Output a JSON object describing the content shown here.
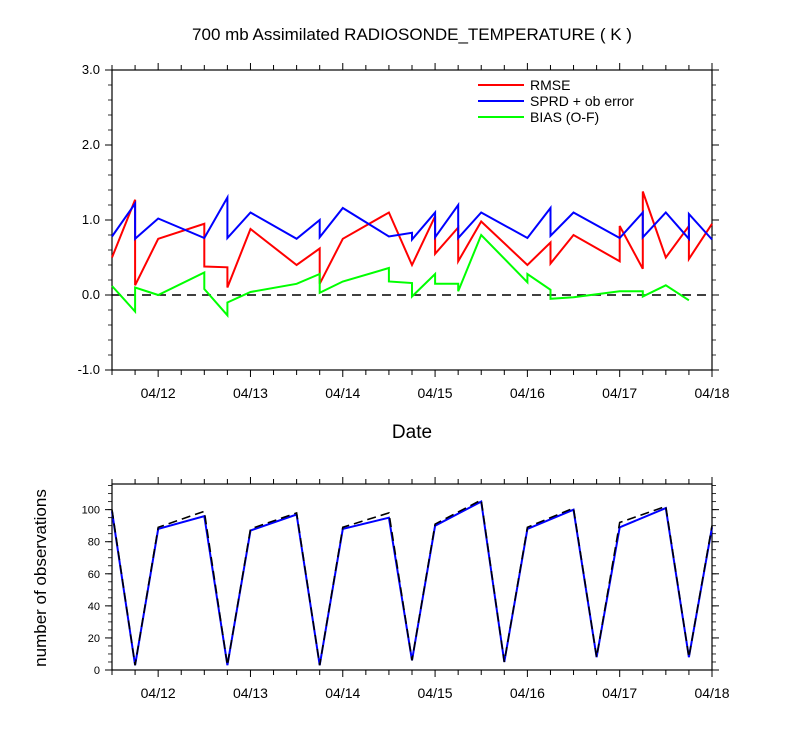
{
  "chart_data": [
    {
      "type": "line",
      "title": "700 mb Assimilated RADIOSONDE_TEMPERATURE ( K )",
      "xlabel": "Date",
      "ylabel": "",
      "xlim": [
        0,
        6.5
      ],
      "ylim": [
        -1.0,
        3.0
      ],
      "yticks": [
        -1.0,
        0.0,
        1.0,
        2.0,
        3.0
      ],
      "ytick_labels": [
        "-1.0",
        "0.0",
        "1.0",
        "2.0",
        "3.0"
      ],
      "xticks": [
        0.5,
        1.5,
        2.5,
        3.5,
        4.5,
        5.5,
        6.5
      ],
      "xtick_labels": [
        "04/12",
        "04/13",
        "04/14",
        "04/15",
        "04/16",
        "04/17",
        "04/18"
      ],
      "legend_position": "top-right",
      "reference_line": {
        "y": 0.0,
        "style": "dashed"
      },
      "series": [
        {
          "name": "RMSE",
          "color": "#ff0000",
          "x": [
            0.0,
            0.25,
            0.25,
            0.5,
            1.0,
            1.0,
            1.25,
            1.25,
            1.5,
            2.0,
            2.25,
            2.25,
            2.5,
            3.0,
            3.25,
            3.5,
            3.5,
            3.75,
            3.75,
            4.0,
            4.5,
            4.75,
            4.75,
            5.0,
            5.5,
            5.5,
            5.75,
            5.75,
            6.0,
            6.25,
            6.25,
            6.5
          ],
          "y": [
            0.5,
            1.27,
            0.13,
            0.75,
            0.95,
            0.38,
            0.37,
            0.1,
            0.88,
            0.4,
            0.62,
            0.15,
            0.75,
            1.1,
            0.4,
            1.05,
            0.55,
            0.9,
            0.45,
            0.98,
            0.4,
            0.7,
            0.42,
            0.8,
            0.45,
            0.92,
            0.35,
            1.38,
            0.5,
            0.92,
            0.48,
            0.95
          ]
        },
        {
          "name": "SPRD + ob error",
          "color": "#0000ff",
          "x": [
            0.0,
            0.25,
            0.25,
            0.5,
            1.0,
            1.25,
            1.25,
            1.5,
            2.0,
            2.25,
            2.25,
            2.5,
            3.0,
            3.25,
            3.25,
            3.5,
            3.5,
            3.75,
            3.75,
            4.0,
            4.5,
            4.75,
            4.75,
            5.0,
            5.5,
            5.75,
            5.75,
            6.0,
            6.25,
            6.25,
            6.5
          ],
          "y": [
            0.78,
            1.22,
            0.75,
            1.02,
            0.76,
            1.3,
            0.76,
            1.1,
            0.75,
            1.0,
            0.77,
            1.16,
            0.78,
            0.83,
            0.74,
            1.1,
            0.77,
            1.2,
            0.76,
            1.1,
            0.76,
            1.16,
            0.79,
            1.1,
            0.76,
            1.1,
            0.77,
            1.1,
            0.75,
            1.08,
            0.74
          ]
        },
        {
          "name": "BIAS (O-F)",
          "color": "#00ff00",
          "x": [
            0.0,
            0.25,
            0.25,
            0.5,
            1.0,
            1.0,
            1.25,
            1.25,
            1.5,
            2.0,
            2.25,
            2.25,
            2.5,
            3.0,
            3.0,
            3.25,
            3.25,
            3.5,
            3.5,
            3.75,
            3.75,
            4.0,
            4.5,
            4.5,
            4.75,
            4.75,
            5.0,
            5.5,
            5.75,
            5.75,
            6.0,
            6.25
          ],
          "y": [
            0.12,
            -0.22,
            0.1,
            0.0,
            0.3,
            0.08,
            -0.27,
            -0.1,
            0.04,
            0.15,
            0.28,
            0.03,
            0.18,
            0.36,
            0.18,
            0.16,
            -0.02,
            0.28,
            0.15,
            0.15,
            0.05,
            0.8,
            0.17,
            0.28,
            0.07,
            -0.05,
            -0.03,
            0.05,
            0.05,
            -0.02,
            0.13,
            -0.07
          ]
        }
      ]
    },
    {
      "type": "line",
      "title": "",
      "xlabel": "",
      "ylabel": "number of observations",
      "xlim": [
        0,
        6.5
      ],
      "ylim": [
        0,
        116
      ],
      "yticks": [
        0,
        20,
        40,
        60,
        80,
        100
      ],
      "ytick_labels": [
        "0",
        "20",
        "40",
        "60",
        "80",
        "100"
      ],
      "xticks": [
        0.5,
        1.5,
        2.5,
        3.5,
        4.5,
        5.5,
        6.5
      ],
      "xtick_labels": [
        "04/12",
        "04/13",
        "04/14",
        "04/15",
        "04/16",
        "04/17",
        "04/18"
      ],
      "series": [
        {
          "name": "",
          "color": "#0000ff",
          "style": "solid",
          "x": [
            0.0,
            0.25,
            0.5,
            1.0,
            1.25,
            1.5,
            2.0,
            2.25,
            2.5,
            3.0,
            3.25,
            3.5,
            4.0,
            4.25,
            4.5,
            5.0,
            5.25,
            5.5,
            6.0,
            6.25,
            6.5
          ],
          "y": [
            99,
            3,
            88,
            96,
            3,
            87,
            97,
            3,
            88,
            95,
            6,
            90,
            105,
            5,
            88,
            100,
            8,
            89,
            101,
            8,
            89
          ]
        },
        {
          "name": "",
          "color": "#000000",
          "style": "dashed",
          "x": [
            0.0,
            0.25,
            0.5,
            1.0,
            1.25,
            1.5,
            2.0,
            2.25,
            2.5,
            3.0,
            3.25,
            3.5,
            4.0,
            4.25,
            4.5,
            5.0,
            5.25,
            5.5,
            6.0,
            6.25,
            6.5
          ],
          "y": [
            100,
            3,
            89,
            99,
            3,
            88,
            98,
            3,
            89,
            98,
            6,
            91,
            106,
            5,
            89,
            101,
            8,
            92,
            102,
            8,
            90
          ]
        }
      ]
    }
  ]
}
